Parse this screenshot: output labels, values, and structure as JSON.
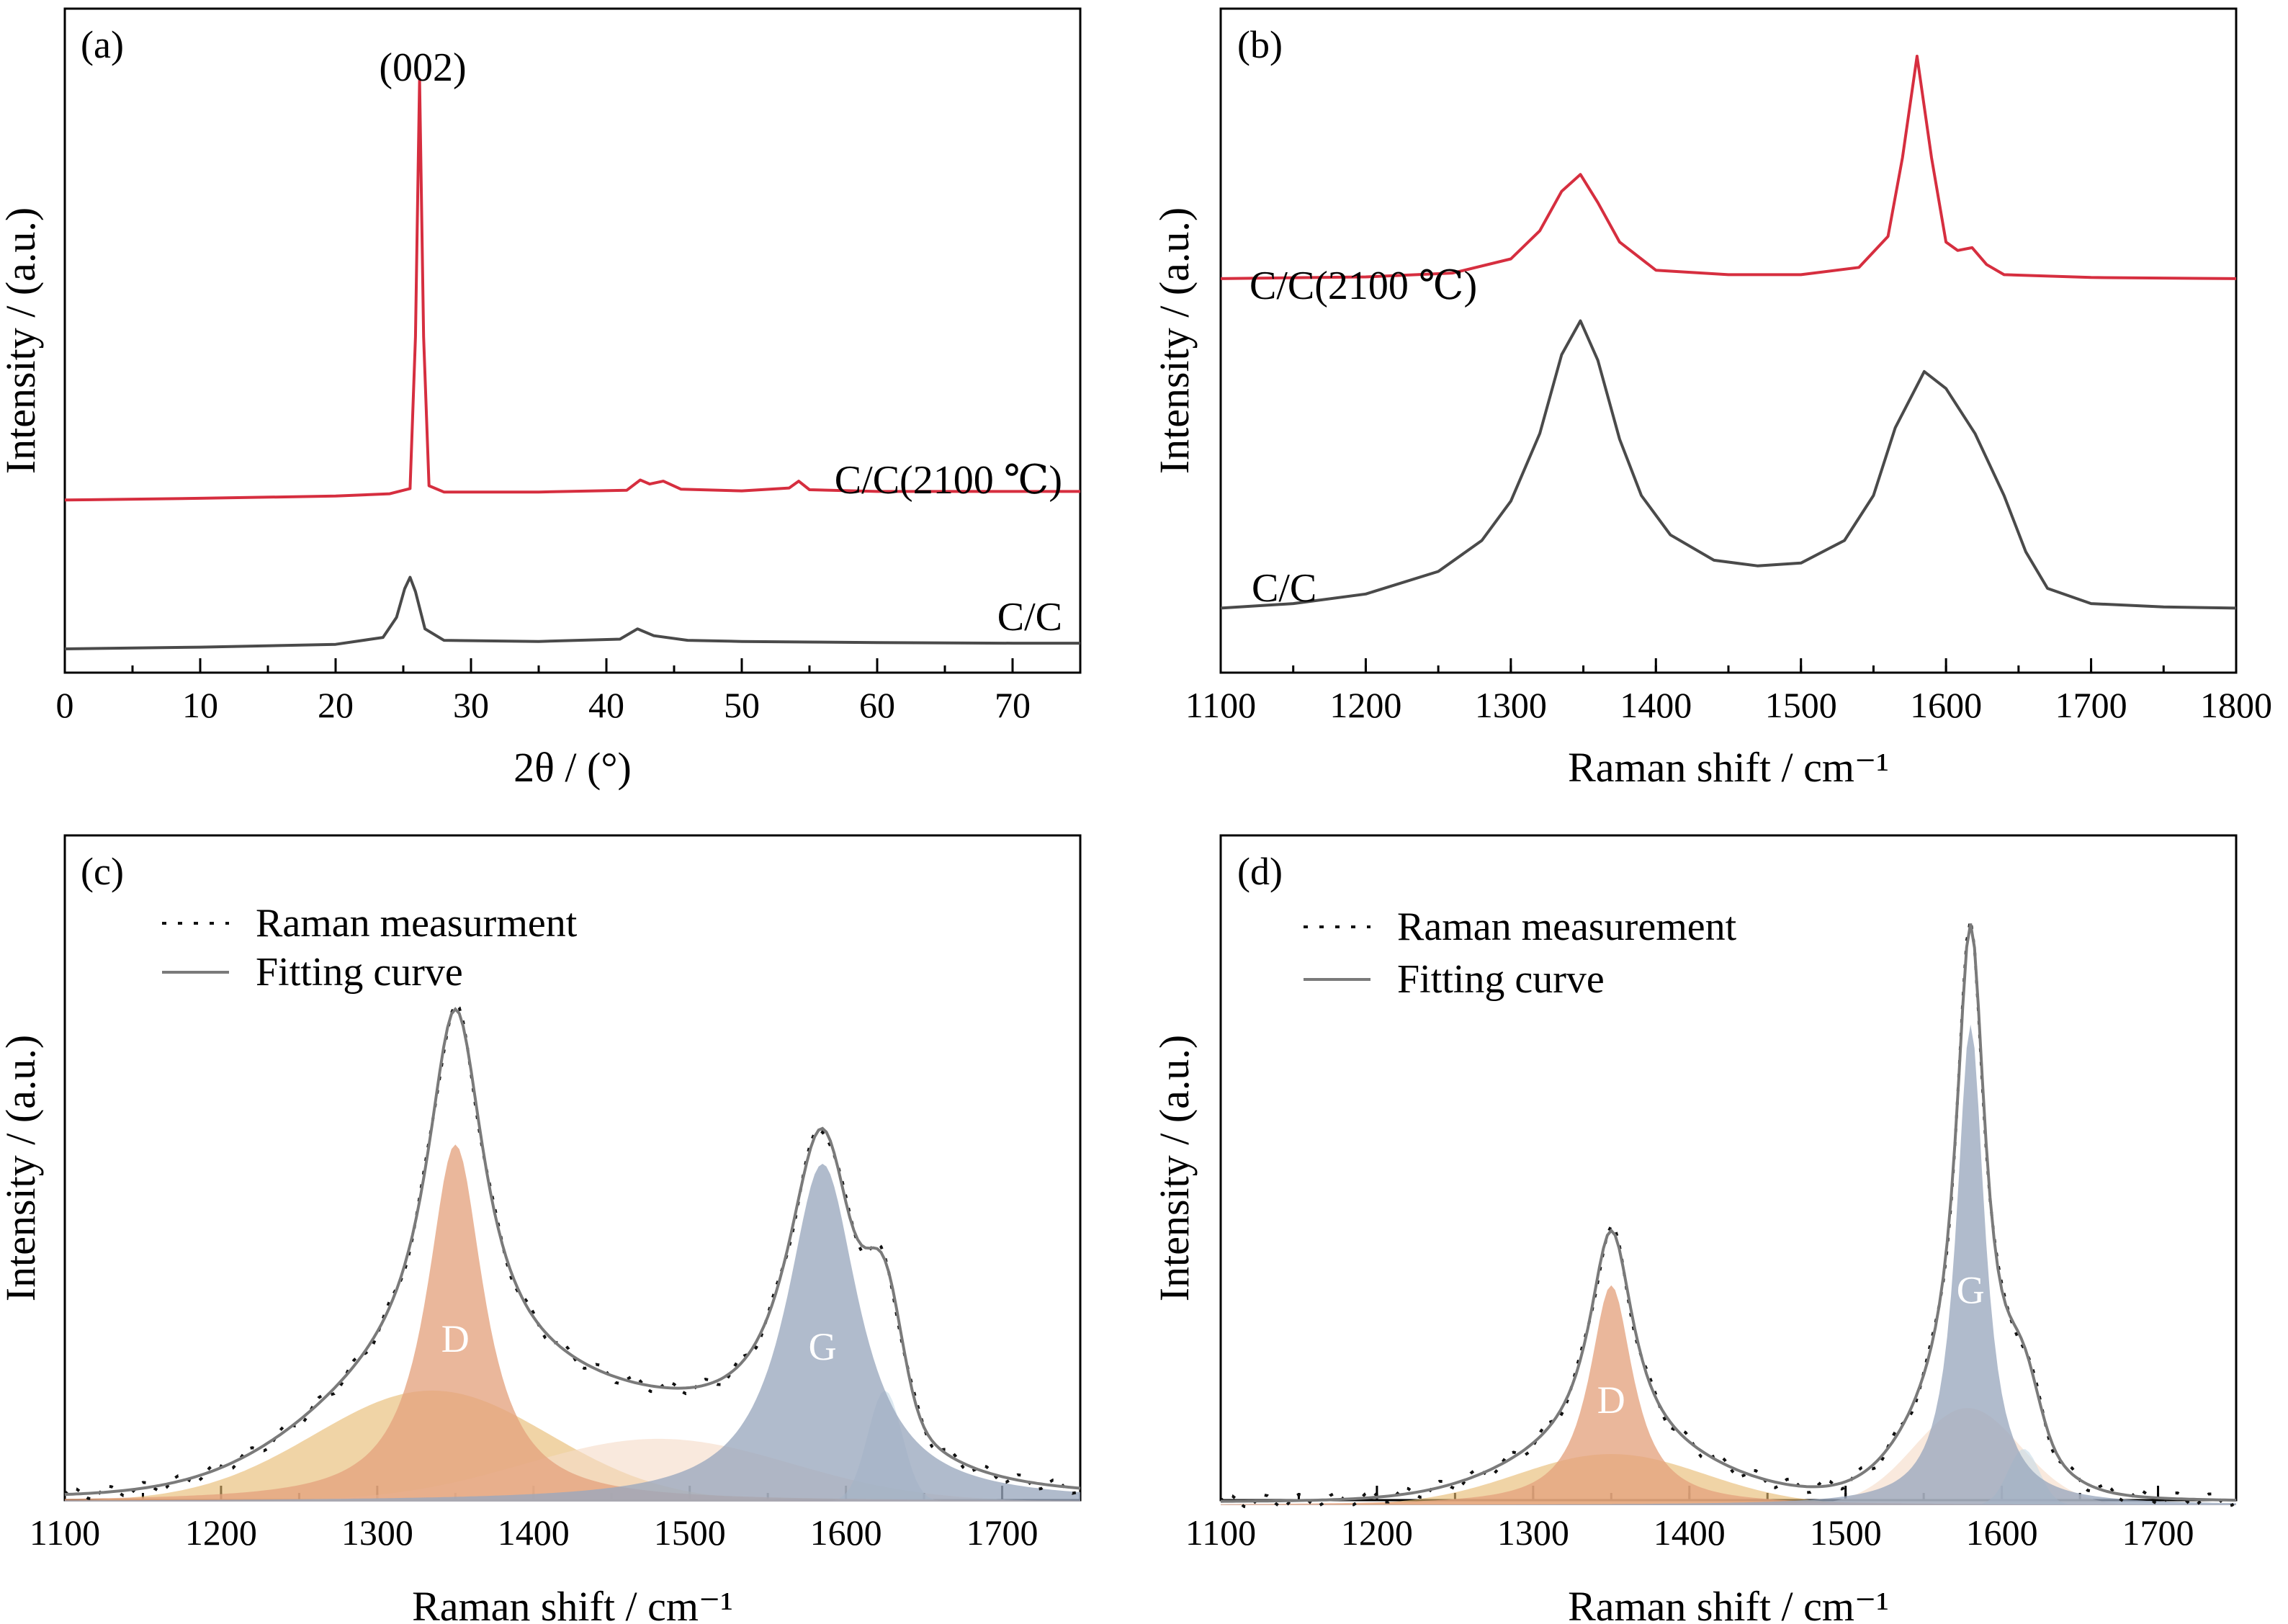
{
  "chart_data": [
    {
      "panel_label": "(a)",
      "type": "line",
      "xlabel": "2θ / (°)",
      "ylabel": "Intensity / (a.u.)",
      "xlim": [
        0,
        75
      ],
      "xticks": [
        "0",
        "10",
        "20",
        "30",
        "40",
        "50",
        "60",
        "70"
      ],
      "annotations": [
        {
          "text": "(002)",
          "x": 26.2
        }
      ],
      "series": [
        {
          "name": "C/C(2100 ℃)",
          "color": "#d62e3f",
          "x": [
            0,
            10,
            20,
            24,
            25.5,
            25.9,
            26.2,
            26.5,
            26.9,
            28,
            35,
            41.5,
            42.5,
            43.2,
            44.2,
            45.5,
            50,
            53.5,
            54.2,
            55,
            60,
            70,
            75
          ],
          "y": [
            0.265,
            0.268,
            0.272,
            0.276,
            0.285,
            0.55,
            1.0,
            0.55,
            0.29,
            0.279,
            0.279,
            0.282,
            0.3,
            0.293,
            0.298,
            0.284,
            0.281,
            0.286,
            0.298,
            0.283,
            0.28,
            0.28,
            0.28
          ]
        },
        {
          "name": "C/C",
          "color": "#4a4a4a",
          "x": [
            0,
            10,
            20,
            23.5,
            24.5,
            25.1,
            25.5,
            25.9,
            26.6,
            28,
            35,
            41,
            42.3,
            43.5,
            46,
            50,
            55,
            60,
            70,
            75
          ],
          "y": [
            0.005,
            0.008,
            0.013,
            0.025,
            0.06,
            0.11,
            0.13,
            0.105,
            0.04,
            0.02,
            0.018,
            0.022,
            0.04,
            0.028,
            0.02,
            0.018,
            0.017,
            0.016,
            0.015,
            0.015
          ]
        }
      ]
    },
    {
      "panel_label": "(b)",
      "type": "line",
      "xlabel": "Raman shift / cm⁻¹",
      "ylabel": "Intensity / (a.u.)",
      "xlim": [
        1100,
        1800
      ],
      "xticks": [
        "1100",
        "1200",
        "1300",
        "1400",
        "1500",
        "1600",
        "1700",
        "1800"
      ],
      "series": [
        {
          "name": "C/C(2100 ℃)",
          "color": "#d62e3f",
          "x": [
            1100,
            1200,
            1260,
            1300,
            1320,
            1335,
            1348,
            1360,
            1375,
            1400,
            1450,
            1500,
            1540,
            1560,
            1570,
            1580,
            1590,
            1600,
            1608,
            1618,
            1628,
            1640,
            1700,
            1800
          ],
          "y": [
            0.605,
            0.608,
            0.615,
            0.64,
            0.69,
            0.76,
            0.79,
            0.74,
            0.67,
            0.62,
            0.612,
            0.612,
            0.625,
            0.68,
            0.82,
            1.0,
            0.82,
            0.67,
            0.655,
            0.66,
            0.63,
            0.612,
            0.607,
            0.605
          ]
        },
        {
          "name": "C/C",
          "color": "#4a4a4a",
          "x": [
            1100,
            1150,
            1200,
            1250,
            1280,
            1300,
            1320,
            1335,
            1348,
            1360,
            1375,
            1390,
            1410,
            1440,
            1470,
            1500,
            1530,
            1550,
            1565,
            1585,
            1600,
            1620,
            1640,
            1655,
            1670,
            1700,
            1750,
            1800
          ],
          "y": [
            0.02,
            0.028,
            0.045,
            0.085,
            0.14,
            0.21,
            0.33,
            0.47,
            0.53,
            0.46,
            0.32,
            0.22,
            0.15,
            0.105,
            0.095,
            0.1,
            0.14,
            0.22,
            0.34,
            0.44,
            0.41,
            0.33,
            0.22,
            0.12,
            0.055,
            0.028,
            0.022,
            0.02
          ]
        }
      ],
      "annotations": [
        {
          "text": "C/C(2100 ℃)"
        },
        {
          "text": "C/C"
        }
      ]
    },
    {
      "panel_label": "(c)",
      "type": "area",
      "xlabel": "Raman shift / cm⁻¹",
      "ylabel": "Intensity / (a.u.)",
      "xlim": [
        1100,
        1750
      ],
      "xticks": [
        "1100",
        "1200",
        "1300",
        "1400",
        "1500",
        "1600",
        "1700"
      ],
      "legend": {
        "position": "top-left",
        "entries": [
          "Raman measurment",
          "Fitting curve"
        ]
      },
      "peak_labels": [
        {
          "text": "D",
          "x": 1350
        },
        {
          "text": "G",
          "x": 1585
        }
      ],
      "components": [
        {
          "label": "D",
          "color": "#e4a37f",
          "center": 1350,
          "amplitude": 0.74,
          "width": 22,
          "shape": "lorentzian"
        },
        {
          "label": "G",
          "color": "#9aa8be",
          "center": 1585,
          "amplitude": 0.7,
          "width": 28,
          "shape": "lorentzian"
        },
        {
          "label": "",
          "color": "#e6b96f",
          "center": 1335,
          "amplitude": 0.23,
          "width": 75,
          "shape": "gaussian"
        },
        {
          "label": "",
          "color": "#f6dcc8",
          "center": 1480,
          "amplitude": 0.13,
          "width": 85,
          "shape": "gaussian"
        },
        {
          "label": "",
          "color": "#c8dbe8",
          "center": 1625,
          "amplitude": 0.23,
          "width": 11,
          "shape": "gaussian"
        }
      ],
      "series": [
        {
          "name": "Raman measurment",
          "style": "dotted",
          "color": "#111111"
        },
        {
          "name": "Fitting curve",
          "style": "solid",
          "color": "#7a7a7a"
        }
      ]
    },
    {
      "panel_label": "(d)",
      "type": "area",
      "xlabel": "Raman shift / cm⁻¹",
      "ylabel": "Intensity / (a.u.)",
      "xlim": [
        1100,
        1750
      ],
      "xticks": [
        "1100",
        "1200",
        "1300",
        "1400",
        "1500",
        "1600",
        "1700"
      ],
      "legend": {
        "position": "top-left",
        "entries": [
          "Raman measurement",
          "Fitting curve"
        ]
      },
      "peak_labels": [
        {
          "text": "D",
          "x": 1350
        },
        {
          "text": "G",
          "x": 1580
        }
      ],
      "components": [
        {
          "label": "D",
          "color": "#e4a37f",
          "center": 1350,
          "amplitude": 0.43,
          "width": 17,
          "shape": "lorentzian"
        },
        {
          "label": "G",
          "color": "#9aa8be",
          "center": 1580,
          "amplitude": 0.94,
          "width": 11,
          "shape": "lorentzian"
        },
        {
          "label": "",
          "color": "#e6b96f",
          "center": 1350,
          "amplitude": 0.1,
          "width": 60,
          "shape": "gaussian"
        },
        {
          "label": "",
          "color": "#f6dcc8",
          "center": 1578,
          "amplitude": 0.19,
          "width": 34,
          "shape": "gaussian"
        },
        {
          "label": "",
          "color": "#c8dbe8",
          "center": 1614,
          "amplitude": 0.11,
          "width": 10,
          "shape": "gaussian"
        }
      ],
      "series": [
        {
          "name": "Raman measurement",
          "style": "dotted",
          "color": "#111111"
        },
        {
          "name": "Fitting curve",
          "style": "solid",
          "color": "#7a7a7a"
        }
      ]
    }
  ]
}
